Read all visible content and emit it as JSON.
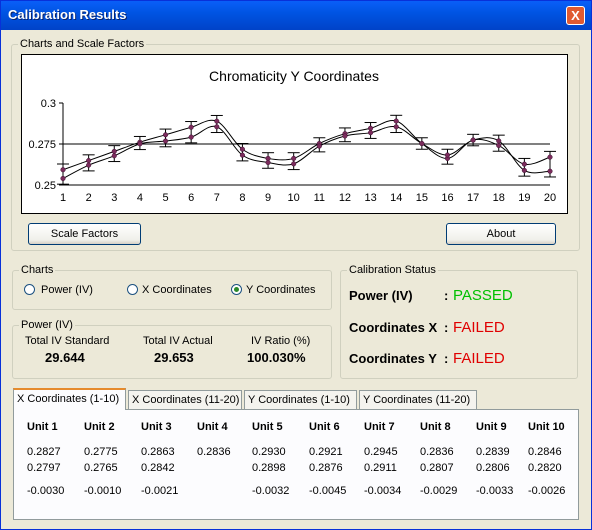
{
  "window": {
    "title": "Calibration Results",
    "close_label": "X"
  },
  "charts_group": {
    "label": "Charts and Scale Factors"
  },
  "chart_data": {
    "type": "line",
    "title": "Chromaticity Y Coordinates",
    "x": [
      1,
      2,
      3,
      4,
      5,
      6,
      7,
      8,
      9,
      10,
      11,
      12,
      13,
      14,
      15,
      16,
      17,
      18,
      19,
      20
    ],
    "xlabel": "",
    "ylabel": "",
    "ylim": [
      0.25,
      0.3
    ],
    "yticks": [
      "0.3",
      "0.275",
      "0.25"
    ],
    "reference_line": 0.275,
    "series": [
      {
        "values": [
          0.2593,
          0.2649,
          0.2705,
          0.2761,
          0.2806,
          0.2852,
          0.2889,
          0.2718,
          0.2662,
          0.2662,
          0.2753,
          0.2813,
          0.2846,
          0.289,
          0.2753,
          0.2662,
          0.2774,
          0.2741,
          0.2627,
          0.267
        ],
        "color": "#000000"
      },
      {
        "values": [
          0.254,
          0.2621,
          0.2678,
          0.2751,
          0.2768,
          0.2792,
          0.2855,
          0.2682,
          0.2637,
          0.2629,
          0.2737,
          0.2799,
          0.2819,
          0.2855,
          0.2753,
          0.2683,
          0.2774,
          0.2769,
          0.2589,
          0.2584
        ],
        "color": "#000000"
      }
    ]
  },
  "buttons": {
    "scale_factors": "Scale Factors",
    "about": "About"
  },
  "charts_radio": {
    "label": "Charts",
    "options": [
      "Power (IV)",
      "X Coordinates",
      "Y Coordinates"
    ],
    "selected": "Y Coordinates"
  },
  "power": {
    "label": "Power (IV)",
    "total_std_label": "Total IV Standard",
    "total_std_value": "29.644",
    "total_act_label": "Total IV Actual",
    "total_act_value": "29.653",
    "ratio_label": "IV Ratio (%)",
    "ratio_value": "100.030%"
  },
  "calibration": {
    "label": "Calibration Status",
    "power_label": "Power (IV)",
    "power_colon": ":",
    "power_status": "PASSED",
    "power_color": "#00c000",
    "x_label": "Coordinates X",
    "x_colon": ":",
    "x_status": "FAILED",
    "x_color": "#e00000",
    "y_label": "Coordinates Y",
    "y_colon": ":",
    "y_status": "FAILED",
    "y_color": "#e00000"
  },
  "tabs": [
    "X Coordinates (1-10)",
    "X Coordinates (11-20)",
    "Y Coordinates (1-10)",
    "Y Coordinates (11-20)"
  ],
  "table": {
    "headers": [
      "Unit 1",
      "Unit 2",
      "Unit 3",
      "Unit 4",
      "Unit 5",
      "Unit 6",
      "Unit 7",
      "Unit 8",
      "Unit 9",
      "Unit 10"
    ],
    "row1": [
      "0.2827",
      "0.2775",
      "0.2863",
      "0.2836",
      "0.2930",
      "0.2921",
      "0.2945",
      "0.2836",
      "0.2839",
      "0.2846"
    ],
    "row2": [
      "0.2797",
      "0.2765",
      "0.2842",
      "",
      "0.2898",
      "0.2876",
      "0.2911",
      "0.2807",
      "0.2806",
      "0.2820"
    ],
    "row3": [
      "-0.0030",
      "-0.0010",
      "-0.0021",
      "",
      "-0.0032",
      "-0.0045",
      "-0.0034",
      "-0.0029",
      "-0.0033",
      "-0.0026"
    ]
  }
}
